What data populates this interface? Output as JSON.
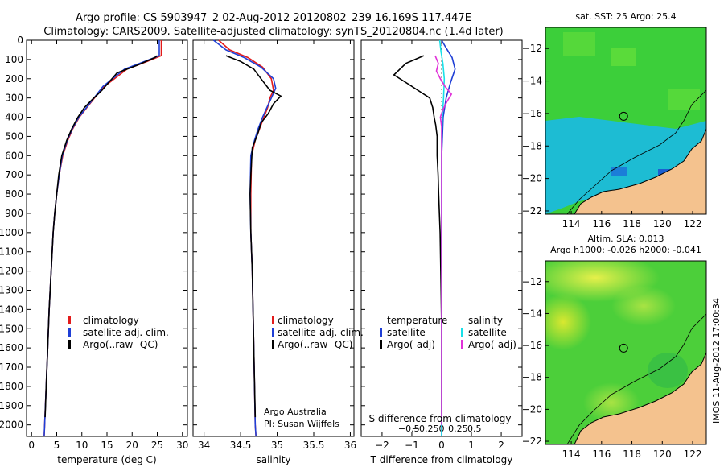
{
  "header": {
    "line1": "Argo profile: CS 5903947_2 02-Aug-2012 20120802_239 16.169S 117.447E",
    "line2": "Climatology: CARS2009. Satellite-adjusted climatology: synTS_20120804.nc (1.4d later)"
  },
  "colors": {
    "climatology": "#e21b1b",
    "satellite": "#1f3fd6",
    "argo": "#000000",
    "salinity_satellite": "#18e0e8",
    "salinity_argo": "#e030d8",
    "land": "#f4c28e"
  },
  "chart_data": [
    {
      "type": "line",
      "id": "temperature",
      "xlabel": "temperature (deg C)",
      "xlim": [
        -1,
        31
      ],
      "xticks": [
        0,
        5,
        10,
        15,
        20,
        25,
        30
      ],
      "xticklabels": [
        "0",
        "5",
        "10",
        "15",
        "20",
        "25",
        "30"
      ],
      "ylim": [
        2060,
        0
      ],
      "yticks": [
        0,
        100,
        200,
        300,
        400,
        500,
        600,
        700,
        800,
        900,
        1000,
        1100,
        1200,
        1300,
        1400,
        1500,
        1600,
        1700,
        1800,
        1900,
        2000
      ],
      "legend": [
        "climatology",
        "satellite-adj. clim.",
        "Argo(..raw -QC)"
      ],
      "series": [
        {
          "name": "climatology",
          "color": "#e21b1b",
          "points": [
            [
              25.8,
              0
            ],
            [
              25.8,
              80
            ],
            [
              23,
              110
            ],
            [
              19,
              150
            ],
            [
              14.5,
              240
            ],
            [
              12.5,
              300
            ],
            [
              11,
              350
            ],
            [
              9.5,
              400
            ],
            [
              8.2,
              460
            ],
            [
              7.2,
              520
            ],
            [
              6.2,
              600
            ],
            [
              5.5,
              700
            ],
            [
              5,
              800
            ],
            [
              4.6,
              900
            ],
            [
              4.3,
              1000
            ],
            [
              3.9,
              1200
            ],
            [
              3.5,
              1400
            ],
            [
              3.2,
              1600
            ],
            [
              2.9,
              1800
            ],
            [
              2.6,
              2000
            ],
            [
              2.5,
              2060
            ]
          ]
        },
        {
          "name": "satellite-adj. clim.",
          "color": "#1f3fd6",
          "points": [
            [
              25.4,
              0
            ],
            [
              25.4,
              80
            ],
            [
              22.5,
              110
            ],
            [
              18.5,
              150
            ],
            [
              14.2,
              240
            ],
            [
              12.4,
              300
            ],
            [
              10.9,
              350
            ],
            [
              9.4,
              400
            ],
            [
              8.1,
              460
            ],
            [
              7.1,
              520
            ],
            [
              6.1,
              600
            ],
            [
              5.5,
              700
            ],
            [
              5,
              800
            ],
            [
              4.6,
              900
            ],
            [
              4.3,
              1000
            ],
            [
              3.9,
              1200
            ],
            [
              3.5,
              1400
            ],
            [
              3.2,
              1600
            ],
            [
              2.9,
              1800
            ],
            [
              2.6,
              2000
            ],
            [
              2.5,
              2060
            ]
          ]
        },
        {
          "name": "Argo(..raw -QC)",
          "color": "#000000",
          "points": [
            [
              25,
              80
            ],
            [
              24.5,
              90
            ],
            [
              21,
              130
            ],
            [
              17,
              170
            ],
            [
              15,
              230
            ],
            [
              14,
              260
            ],
            [
              12,
              310
            ],
            [
              10.5,
              350
            ],
            [
              9.2,
              400
            ],
            [
              8,
              460
            ],
            [
              7,
              520
            ],
            [
              6,
              600
            ],
            [
              5.4,
              700
            ],
            [
              5,
              800
            ],
            [
              4.6,
              900
            ],
            [
              4.3,
              1000
            ],
            [
              3.9,
              1200
            ],
            [
              3.5,
              1400
            ],
            [
              3.2,
              1600
            ],
            [
              2.9,
              1800
            ],
            [
              2.7,
              1960
            ]
          ]
        }
      ]
    },
    {
      "type": "line",
      "id": "salinity",
      "xlabel": "salinity",
      "xlim": [
        33.85,
        36.05
      ],
      "xticks": [
        34,
        34.5,
        35,
        35.5,
        36
      ],
      "xticklabels": [
        "34",
        "34.5",
        "35",
        "35.5",
        "36"
      ],
      "ylim": [
        2060,
        0
      ],
      "legend": [
        "climatology",
        "satellite-adj. clim.",
        "Argo(..raw -QC)"
      ],
      "annotations": [
        "Argo Australia",
        "PI: Susan Wijffels"
      ],
      "series": [
        {
          "name": "climatology",
          "color": "#e21b1b",
          "points": [
            [
              34.2,
              0
            ],
            [
              34.35,
              50
            ],
            [
              34.6,
              90
            ],
            [
              34.8,
              140
            ],
            [
              34.92,
              200
            ],
            [
              34.95,
              260
            ],
            [
              34.9,
              300
            ],
            [
              34.87,
              350
            ],
            [
              34.82,
              400
            ],
            [
              34.76,
              460
            ],
            [
              34.7,
              520
            ],
            [
              34.65,
              600
            ],
            [
              34.64,
              800
            ],
            [
              34.64,
              1000
            ],
            [
              34.66,
              1200
            ],
            [
              34.68,
              1600
            ],
            [
              34.7,
              2000
            ],
            [
              34.71,
              2060
            ]
          ]
        },
        {
          "name": "satellite-adj. clim.",
          "color": "#1f3fd6",
          "points": [
            [
              34.13,
              0
            ],
            [
              34.3,
              50
            ],
            [
              34.55,
              90
            ],
            [
              34.78,
              140
            ],
            [
              34.95,
              200
            ],
            [
              34.98,
              250
            ],
            [
              34.92,
              300
            ],
            [
              34.86,
              350
            ],
            [
              34.8,
              400
            ],
            [
              34.74,
              460
            ],
            [
              34.69,
              520
            ],
            [
              34.64,
              600
            ],
            [
              34.63,
              800
            ],
            [
              34.64,
              1000
            ],
            [
              34.66,
              1200
            ],
            [
              34.68,
              1600
            ],
            [
              34.7,
              2000
            ],
            [
              34.71,
              2060
            ]
          ]
        },
        {
          "name": "Argo(..raw -QC)",
          "color": "#000000",
          "points": [
            [
              34.3,
              80
            ],
            [
              34.5,
              110
            ],
            [
              34.68,
              150
            ],
            [
              34.78,
              200
            ],
            [
              34.9,
              260
            ],
            [
              35.05,
              290
            ],
            [
              34.95,
              330
            ],
            [
              34.88,
              380
            ],
            [
              34.78,
              430
            ],
            [
              34.74,
              480
            ],
            [
              34.7,
              520
            ],
            [
              34.66,
              560
            ],
            [
              34.64,
              700
            ],
            [
              34.63,
              800
            ],
            [
              34.64,
              1000
            ],
            [
              34.66,
              1200
            ],
            [
              34.68,
              1600
            ],
            [
              34.7,
              1960
            ]
          ]
        }
      ]
    },
    {
      "type": "line",
      "id": "difference",
      "xlabel": "T difference from climatology",
      "xlabel2": "S difference from climatology",
      "xlim": [
        -2.7,
        2.7
      ],
      "xticks": [
        -2,
        -1,
        0,
        1,
        2
      ],
      "xticklabels": [
        "−2",
        "−1",
        "0",
        "1",
        "2"
      ],
      "topticks": [
        -0.5,
        -0.25,
        0,
        0.25,
        0.5
      ],
      "topticklabels": [
        "−0.5",
        "−0.25",
        "0",
        "0.25",
        "0.5"
      ],
      "s_scale": 2.2,
      "ylim": [
        2060,
        0
      ],
      "legend_header": [
        "temperature",
        "salinity"
      ],
      "legend": [
        "satellite",
        "Argo(-adj)",
        "satellite",
        "Argo(-adj)"
      ],
      "series": [
        {
          "name": "temperature satellite",
          "color": "#1f3fd6",
          "points": [
            [
              0,
              0
            ],
            [
              0.15,
              40
            ],
            [
              0.35,
              90
            ],
            [
              0.45,
              150
            ],
            [
              0.3,
              220
            ],
            [
              0.15,
              300
            ],
            [
              0.05,
              400
            ],
            [
              0,
              600
            ],
            [
              0,
              2060
            ]
          ]
        },
        {
          "name": "temperature Argo(-adj)",
          "color": "#000000",
          "points": [
            [
              -0.6,
              80
            ],
            [
              -1.2,
              120
            ],
            [
              -1.6,
              180
            ],
            [
              -1.2,
              220
            ],
            [
              -0.7,
              270
            ],
            [
              -0.4,
              300
            ],
            [
              -0.3,
              350
            ],
            [
              -0.25,
              400
            ],
            [
              -0.2,
              440
            ],
            [
              -0.15,
              500
            ],
            [
              -0.15,
              600
            ],
            [
              -0.12,
              700
            ],
            [
              -0.1,
              800
            ],
            [
              -0.05,
              1000
            ],
            [
              -0.03,
              1200
            ],
            [
              0,
              1500
            ],
            [
              0,
              1960
            ]
          ]
        },
        {
          "name": "salinity satellite",
          "color": "#18e0e8",
          "points": [
            [
              -0.03,
              0
            ],
            [
              -0.01,
              60
            ],
            [
              0.02,
              120
            ],
            [
              0.04,
              200
            ],
            [
              0.03,
              300
            ],
            [
              0.01,
              400
            ],
            [
              0,
              500
            ],
            [
              0,
              2060
            ]
          ]
        },
        {
          "name": "salinity Argo(-adj)",
          "color": "#e030d8",
          "points": [
            [
              -0.1,
              80
            ],
            [
              -0.05,
              120
            ],
            [
              -0.08,
              160
            ],
            [
              -0.02,
              200
            ],
            [
              0.05,
              240
            ],
            [
              0.15,
              280
            ],
            [
              0.08,
              320
            ],
            [
              0.02,
              360
            ],
            [
              -0.02,
              400
            ],
            [
              0,
              450
            ],
            [
              0,
              2000
            ]
          ]
        }
      ]
    }
  ],
  "maps": [
    {
      "id": "sst-map",
      "title": "sat. SST: 25 Argo: 25.4",
      "title2": "",
      "xticklabels": [
        "114",
        "116",
        "118",
        "120",
        "122"
      ],
      "yticklabels": [
        "−12",
        "−14",
        "−16",
        "−18",
        "−20",
        "−22"
      ],
      "marker": [
        117.45,
        -16.17
      ]
    },
    {
      "id": "sla-map",
      "title": "Altim. SLA: 0.013",
      "title2": "Argo h1000: -0.026 h2000: -0.041",
      "xticklabels": [
        "114",
        "116",
        "118",
        "120",
        "122"
      ],
      "yticklabels": [
        "−12",
        "−14",
        "−16",
        "−18",
        "−20",
        "−22"
      ],
      "marker": [
        117.45,
        -16.17
      ]
    }
  ],
  "credit": "IMOS 11-Aug-2012 17:00:34"
}
